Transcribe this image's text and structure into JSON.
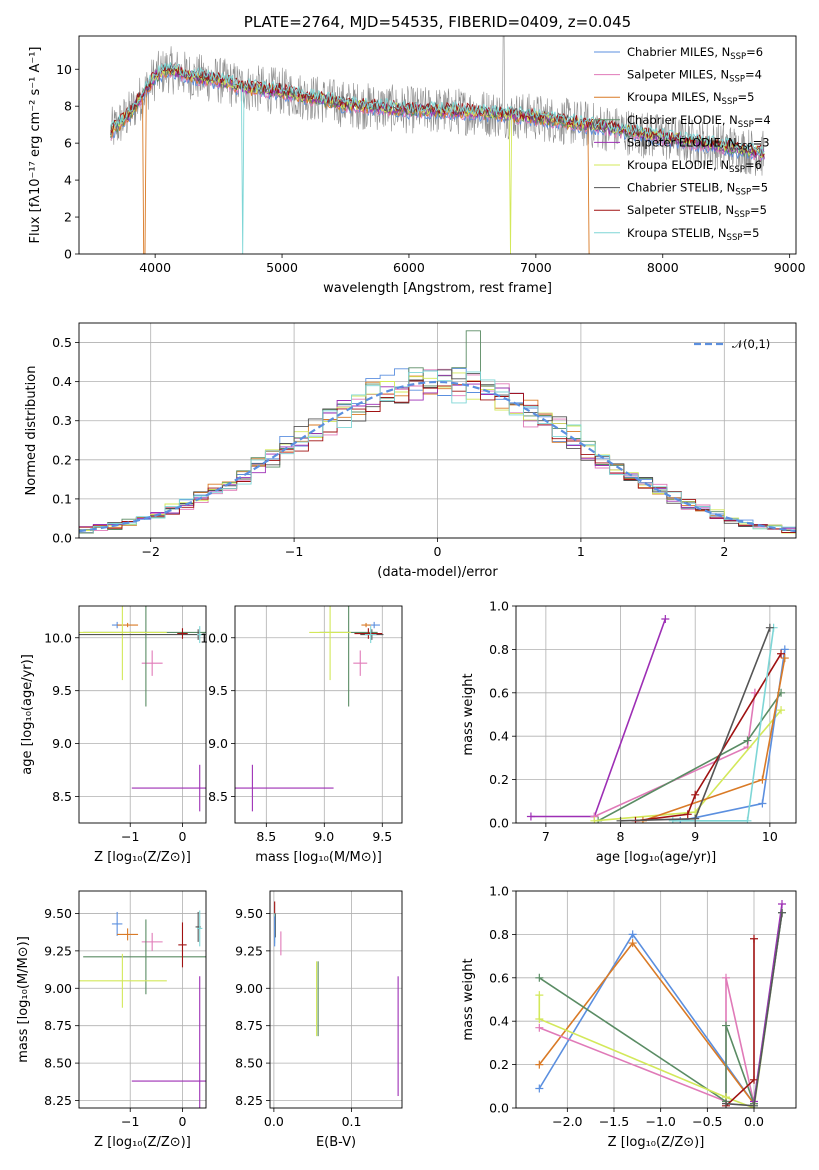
{
  "colors": {
    "Chabrier MILES": "#5b8fdf",
    "Salpeter MILES": "#e07ab8",
    "Kroupa MILES": "#d97a26",
    "Chabrier ELODIE": "#5a8c64",
    "Salpeter ELODIE": "#9d2fb5",
    "Kroupa ELODIE": "#d3e85a",
    "Chabrier STELIB": "#555555",
    "Salpeter STELIB": "#a01212",
    "Kroupa STELIB": "#7ed6d6"
  },
  "chart_data": [
    {
      "id": "spectrum",
      "type": "line",
      "title": "PLATE=2764, MJD=54535, FIBERID=0409, z=0.045",
      "xlabel": "wavelength [Angstrom, rest frame]",
      "ylabel": "Flux [fλ10⁻¹⁷ erg cm⁻² s⁻¹ A⁻¹]",
      "xlim": [
        3400,
        9050
      ],
      "ylim": [
        0,
        11.8
      ],
      "xticks": [
        4000,
        5000,
        6000,
        7000,
        8000,
        9000
      ],
      "yticks": [
        0,
        2,
        4,
        6,
        8,
        10
      ],
      "grid": false,
      "legend_position": "upper right",
      "legend": [
        {
          "label": "Chabrier MILES",
          "nssp": "6",
          "key": "Chabrier MILES"
        },
        {
          "label": "Salpeter MILES",
          "nssp": "4",
          "key": "Salpeter MILES"
        },
        {
          "label": "Kroupa MILES",
          "nssp": "5",
          "key": "Kroupa MILES"
        },
        {
          "label": "Chabrier ELODIE",
          "nssp": "4",
          "key": "Chabrier ELODIE"
        },
        {
          "label": "Salpeter ELODIE",
          "nssp": "3",
          "key": "Salpeter ELODIE"
        },
        {
          "label": "Kroupa ELODIE",
          "nssp": "6",
          "key": "Kroupa ELODIE"
        },
        {
          "label": "Chabrier STELIB",
          "nssp": "5",
          "key": "Chabrier STELIB"
        },
        {
          "label": "Salpeter STELIB",
          "nssp": "5",
          "key": "Salpeter STELIB"
        },
        {
          "label": "Kroupa STELIB",
          "nssp": "5",
          "key": "Kroupa STELIB"
        }
      ],
      "continuum_points": [
        [
          3650,
          6.6
        ],
        [
          3800,
          7.6
        ],
        [
          3900,
          8.6
        ],
        [
          4000,
          9.6
        ],
        [
          4100,
          10.0
        ],
        [
          4300,
          9.6
        ],
        [
          4500,
          9.4
        ],
        [
          4700,
          9.0
        ],
        [
          5000,
          8.8
        ],
        [
          5200,
          8.5
        ],
        [
          5500,
          8.1
        ],
        [
          6000,
          7.8
        ],
        [
          6500,
          7.7
        ],
        [
          7000,
          7.4
        ],
        [
          7500,
          6.9
        ],
        [
          8000,
          6.3
        ],
        [
          8500,
          5.8
        ],
        [
          8800,
          5.4
        ]
      ],
      "data_series": {
        "name": "data",
        "color": "#8c8c8c",
        "x_range": [
          3650,
          8800
        ]
      },
      "features": [
        {
          "series": "Kroupa MILES",
          "x": 3915,
          "drop_to": 0
        },
        {
          "series": "Kroupa STELIB",
          "x": 4690,
          "drop_to": 0
        },
        {
          "series": "Kroupa ELODIE",
          "x": 6800,
          "drop_to": 0
        },
        {
          "series": "Kroupa MILES",
          "x": 7420,
          "drop_to": 0
        },
        {
          "series": "data",
          "x": 6745,
          "rise_to": 11.8
        }
      ]
    },
    {
      "id": "residuals",
      "type": "histogram",
      "xlabel": "(data-model)/error",
      "ylabel": "Normed distribution",
      "xlim": [
        -2.5,
        2.5
      ],
      "ylim": [
        0,
        0.55
      ],
      "xticks": [
        -2,
        -1,
        0,
        1,
        2
      ],
      "yticks": [
        0.0,
        0.1,
        0.2,
        0.3,
        0.4,
        0.5
      ],
      "grid": true,
      "reference": {
        "name": "𝒩(0,1)",
        "color": "#5b8fdf",
        "style": "dashed",
        "mean": 0,
        "sigma": 1
      },
      "legend_position": "upper right",
      "bin_width": 0.1,
      "peak_series": {
        "key": "Chabrier ELODIE",
        "x": 0.25,
        "value": 0.53
      }
    },
    {
      "id": "age_vs_Z",
      "type": "errorbar",
      "xlabel": "Z [log₁₀(Z/Z⊙)]",
      "ylabel": "age  [log₁₀(age/yr)]",
      "xlim": [
        -1.98,
        0.45
      ],
      "ylim": [
        8.25,
        10.3
      ],
      "xticks": [
        -1,
        0
      ],
      "yticks": [
        8.5,
        9.0,
        9.5,
        10.0
      ],
      "grid": true,
      "points": [
        {
          "key": "Chabrier MILES",
          "x": -1.25,
          "y": 10.12,
          "xerr": 0.1,
          "yerr": 0.03
        },
        {
          "key": "Salpeter MILES",
          "x": -0.58,
          "y": 9.76,
          "xerr": 0.2,
          "yerr": 0.12
        },
        {
          "key": "Kroupa MILES",
          "x": -1.05,
          "y": 10.12,
          "xerr": 0.2,
          "yerr": 0.02
        },
        {
          "key": "Chabrier ELODIE",
          "x": -0.7,
          "y": 10.05,
          "xerr": 1.2,
          "yerr": 0.7
        },
        {
          "key": "Salpeter ELODIE",
          "x": 0.33,
          "y": 8.58,
          "xerr": 1.3,
          "yerr": 0.22
        },
        {
          "key": "Kroupa ELODIE",
          "x": -1.15,
          "y": 10.05,
          "xerr": 0.85,
          "yerr": 0.45
        },
        {
          "key": "Chabrier STELIB",
          "x": 0.3,
          "y": 10.03,
          "xerr": 2.3,
          "yerr": 0.05
        },
        {
          "key": "Salpeter STELIB",
          "x": 0.0,
          "y": 10.04,
          "xerr": 0.1,
          "yerr": 0.05
        },
        {
          "key": "Kroupa STELIB",
          "x": 0.33,
          "y": 10.03,
          "xerr": 0.05,
          "yerr": 0.08
        }
      ]
    },
    {
      "id": "age_vs_mass",
      "type": "errorbar",
      "xlabel": "mass [log₁₀(M/M⊙)]",
      "ylabel": "",
      "xlim": [
        8.23,
        9.67
      ],
      "ylim": [
        8.25,
        10.3
      ],
      "xticks": [
        8.5,
        9.0,
        9.5
      ],
      "yticks": [
        8.5,
        9.0,
        9.5,
        10.0
      ],
      "grid": true,
      "points": [
        {
          "key": "Chabrier MILES",
          "x": 9.43,
          "y": 10.12,
          "xerr": 0.05,
          "yerr": 0.03
        },
        {
          "key": "Salpeter MILES",
          "x": 9.31,
          "y": 9.76,
          "xerr": 0.06,
          "yerr": 0.12
        },
        {
          "key": "Kroupa MILES",
          "x": 9.36,
          "y": 10.12,
          "xerr": 0.04,
          "yerr": 0.02
        },
        {
          "key": "Chabrier ELODIE",
          "x": 9.21,
          "y": 10.05,
          "xerr": 0.25,
          "yerr": 0.7
        },
        {
          "key": "Salpeter ELODIE",
          "x": 8.38,
          "y": 8.58,
          "xerr": 0.7,
          "yerr": 0.22
        },
        {
          "key": "Kroupa ELODIE",
          "x": 9.05,
          "y": 10.05,
          "xerr": 0.18,
          "yerr": 0.45
        },
        {
          "key": "Chabrier STELIB",
          "x": 9.41,
          "y": 10.03,
          "xerr": 0.1,
          "yerr": 0.05
        },
        {
          "key": "Salpeter STELIB",
          "x": 9.38,
          "y": 10.04,
          "xerr": 0.12,
          "yerr": 0.05
        },
        {
          "key": "Kroupa STELIB",
          "x": 9.4,
          "y": 10.03,
          "xerr": 0.05,
          "yerr": 0.08
        }
      ]
    },
    {
      "id": "weight_vs_age",
      "type": "line",
      "xlabel": "age  [log₁₀(age/yr)]",
      "ylabel": "mass weight",
      "xlim": [
        6.6,
        10.35
      ],
      "ylim": [
        0,
        1.0
      ],
      "xticks": [
        7,
        8,
        9,
        10
      ],
      "yticks": [
        0.0,
        0.2,
        0.4,
        0.6,
        0.8,
        1.0
      ],
      "grid": true,
      "series": [
        {
          "key": "Salpeter ELODIE",
          "x": [
            6.8,
            7.65,
            8.6
          ],
          "y": [
            0.03,
            0.03,
            0.94
          ]
        },
        {
          "key": "Salpeter MILES",
          "x": [
            7.65,
            9.7,
            9.8,
            9.8
          ],
          "y": [
            0.03,
            0.35,
            0.6,
            0.6
          ]
        },
        {
          "key": "Chabrier ELODIE",
          "x": [
            7.7,
            9.7,
            10.15
          ],
          "y": [
            0.01,
            0.38,
            0.6
          ]
        },
        {
          "key": "Kroupa ELODIE",
          "x": [
            7.65,
            9.0,
            10.15
          ],
          "y": [
            0.01,
            0.05,
            0.52
          ]
        },
        {
          "key": "Chabrier MILES",
          "x": [
            8.8,
            9.9,
            10.2
          ],
          "y": [
            0.01,
            0.09,
            0.8
          ]
        },
        {
          "key": "Kroupa MILES",
          "x": [
            8.3,
            9.9,
            10.2
          ],
          "y": [
            0.01,
            0.2,
            0.76
          ]
        },
        {
          "key": "Salpeter STELIB",
          "x": [
            8.2,
            8.9,
            9.0,
            10.15
          ],
          "y": [
            0.01,
            0.04,
            0.13,
            0.78
          ]
        },
        {
          "key": "Kroupa STELIB",
          "x": [
            8.7,
            9.7,
            10.05
          ],
          "y": [
            0.01,
            0.01,
            0.9
          ]
        },
        {
          "key": "Chabrier STELIB",
          "x": [
            8.0,
            9.0,
            10.0
          ],
          "y": [
            0.01,
            0.02,
            0.9
          ]
        }
      ]
    },
    {
      "id": "mass_vs_Z",
      "type": "errorbar",
      "xlabel": "Z [log₁₀(Z/Z⊙)]",
      "ylabel": "mass [log₁₀(M/M⊙)]",
      "xlim": [
        -1.98,
        0.45
      ],
      "ylim": [
        8.2,
        9.65
      ],
      "xticks": [
        -1,
        0
      ],
      "yticks": [
        8.25,
        8.5,
        8.75,
        9.0,
        9.25,
        9.5
      ],
      "grid": true,
      "points": [
        {
          "key": "Chabrier MILES",
          "x": -1.25,
          "y": 9.43,
          "xerr": 0.1,
          "yerr": 0.08
        },
        {
          "key": "Salpeter MILES",
          "x": -0.58,
          "y": 9.31,
          "xerr": 0.2,
          "yerr": 0.06
        },
        {
          "key": "Kroupa MILES",
          "x": -1.05,
          "y": 9.36,
          "xerr": 0.2,
          "yerr": 0.04
        },
        {
          "key": "Chabrier ELODIE",
          "x": -0.7,
          "y": 9.21,
          "xerr": 1.2,
          "yerr": 0.25
        },
        {
          "key": "Salpeter ELODIE",
          "x": 0.33,
          "y": 8.38,
          "xerr": 1.3,
          "yerr": 0.7
        },
        {
          "key": "Kroupa ELODIE",
          "x": -1.15,
          "y": 9.05,
          "xerr": 0.85,
          "yerr": 0.18
        },
        {
          "key": "Chabrier STELIB",
          "x": 0.3,
          "y": 9.41,
          "xerr": 0.05,
          "yerr": 0.1
        },
        {
          "key": "Salpeter STELIB",
          "x": 0.0,
          "y": 9.29,
          "xerr": 0.08,
          "yerr": 0.15
        },
        {
          "key": "Kroupa STELIB",
          "x": 0.33,
          "y": 9.4,
          "xerr": 0.05,
          "yerr": 0.12
        }
      ]
    },
    {
      "id": "mass_vs_ebv",
      "type": "errorbar",
      "xlabel": "E(B-V)",
      "ylabel": "",
      "xlim": [
        -0.005,
        0.165
      ],
      "ylim": [
        8.2,
        9.65
      ],
      "xticks": [
        0.0,
        0.1
      ],
      "yticks": [
        8.25,
        8.5,
        8.75,
        9.0,
        9.25,
        9.5
      ],
      "grid": true,
      "points": [
        {
          "key": "Salpeter STELIB",
          "x": 0.001,
          "y": 9.5,
          "xerr": 0,
          "yerr": 0.08
        },
        {
          "key": "Chabrier STELIB",
          "x": 0.002,
          "y": 9.42,
          "xerr": 0,
          "yerr": 0.08
        },
        {
          "key": "Kroupa STELIB",
          "x": 0.001,
          "y": 9.4,
          "xerr": 0,
          "yerr": 0.1
        },
        {
          "key": "Chabrier MILES",
          "x": 0.001,
          "y": 9.38,
          "xerr": 0,
          "yerr": 0.1
        },
        {
          "key": "Salpeter MILES",
          "x": 0.009,
          "y": 9.3,
          "xerr": 0,
          "yerr": 0.08
        },
        {
          "key": "Kroupa ELODIE",
          "x": 0.055,
          "y": 8.93,
          "xerr": 0,
          "yerr": 0.25
        },
        {
          "key": "Chabrier ELODIE",
          "x": 0.057,
          "y": 8.93,
          "xerr": 0,
          "yerr": 0.25
        },
        {
          "key": "Salpeter ELODIE",
          "x": 0.16,
          "y": 8.68,
          "xerr": 0,
          "yerr": 0.4
        }
      ]
    },
    {
      "id": "weight_vs_Z",
      "type": "line",
      "xlabel": "Z [log₁₀(Z/Z⊙)]",
      "ylabel": "mass weight",
      "xlim": [
        -2.55,
        0.45
      ],
      "ylim": [
        0,
        1.0
      ],
      "xticks": [
        -2.0,
        -1.5,
        -1.0,
        -0.5,
        0.0
      ],
      "yticks": [
        0.0,
        0.2,
        0.4,
        0.6,
        0.8,
        1.0
      ],
      "grid": true,
      "series": [
        {
          "key": "Chabrier MILES",
          "x": [
            -2.3,
            -1.3,
            0.0,
            0.3
          ],
          "y": [
            0.09,
            0.8,
            0.02,
            0.9
          ]
        },
        {
          "key": "Kroupa MILES",
          "x": [
            -2.3,
            -1.3,
            0.0,
            0.3
          ],
          "y": [
            0.2,
            0.76,
            0.02,
            0.9
          ]
        },
        {
          "key": "Salpeter MILES",
          "x": [
            -2.3,
            -0.3,
            -0.3,
            0.0,
            0.3
          ],
          "y": [
            0.37,
            0.03,
            0.6,
            0.02,
            0.9
          ]
        },
        {
          "key": "Chabrier ELODIE",
          "x": [
            -2.3,
            -0.3,
            -0.3,
            0.0,
            0.3
          ],
          "y": [
            0.6,
            0.03,
            0.38,
            0.02,
            0.9
          ]
        },
        {
          "key": "Kroupa ELODIE",
          "x": [
            -2.3,
            -2.3,
            -0.3,
            0.0,
            0.3
          ],
          "y": [
            0.52,
            0.41,
            0.05,
            0.0,
            0.9
          ]
        },
        {
          "key": "Salpeter ELODIE",
          "x": [
            0.0,
            0.3
          ],
          "y": [
            0.03,
            0.94
          ]
        },
        {
          "key": "Salpeter STELIB",
          "x": [
            -0.3,
            0.0,
            0.0
          ],
          "y": [
            0.01,
            0.13,
            0.78
          ]
        },
        {
          "key": "Kroupa STELIB",
          "x": [
            0.0,
            0.3
          ],
          "y": [
            0.01,
            0.9
          ]
        },
        {
          "key": "Chabrier STELIB",
          "x": [
            -0.3,
            0.0,
            0.3
          ],
          "y": [
            0.02,
            0.01,
            0.9
          ]
        }
      ]
    }
  ]
}
